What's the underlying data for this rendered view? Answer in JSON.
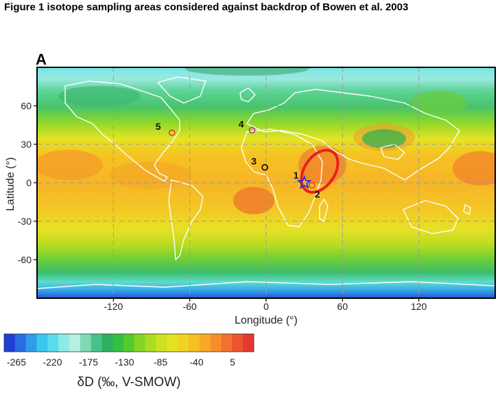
{
  "figure_title": "Figure 1 isotope sampling areas considered against backdrop of Bowen et al. 2003",
  "panel_label": "A",
  "map": {
    "x_axis": {
      "label": "Longitude (°)",
      "ticks": [
        {
          "value": -120,
          "label": "-120"
        },
        {
          "value": -60,
          "label": "-60"
        },
        {
          "value": 0,
          "label": "0"
        },
        {
          "value": 60,
          "label": "60"
        },
        {
          "value": 120,
          "label": "120"
        }
      ],
      "range": [
        -180,
        180
      ]
    },
    "y_axis": {
      "label": "Latitude (°)",
      "ticks": [
        {
          "value": 60,
          "label": "60"
        },
        {
          "value": 30,
          "label": "30"
        },
        {
          "value": 0,
          "label": "0"
        },
        {
          "value": -30,
          "label": "-30"
        },
        {
          "value": -60,
          "label": "-60"
        }
      ],
      "range": [
        -90,
        90
      ]
    },
    "grid": "dashed",
    "sample_sites": [
      {
        "id": "site-1",
        "label": "1",
        "lon": 30,
        "lat": 0,
        "marker": "star",
        "color": "#2b2bd6"
      },
      {
        "id": "site-2",
        "label": "2",
        "lon": 36,
        "lat": -2,
        "marker": "circle",
        "color": "#e33b2e"
      },
      {
        "id": "site-3",
        "label": "3",
        "lon": -1,
        "lat": 12,
        "marker": "circle",
        "color": "#000000"
      },
      {
        "id": "site-4",
        "label": "4",
        "lon": -11,
        "lat": 41,
        "marker": "circle",
        "color": "#c0309a"
      },
      {
        "id": "site-5",
        "label": "5",
        "lon": -74,
        "lat": 39,
        "marker": "circle",
        "color": "#e33b2e"
      }
    ],
    "highlight_region": {
      "center_lon": 42,
      "center_lat": 9,
      "color": "#e8211a"
    }
  },
  "colorbar": {
    "label": "δD (‰, V-SMOW)",
    "tick_labels": [
      "-265",
      "-220",
      "-175",
      "-130",
      "-85",
      "-40",
      "5"
    ],
    "colors": [
      "#1f3fd6",
      "#2a6de0",
      "#2f9de8",
      "#3dc6ee",
      "#59dcee",
      "#8eeae6",
      "#b6f0e0",
      "#7fd9b4",
      "#46c38a",
      "#2fb061",
      "#35c043",
      "#55cc2e",
      "#86d526",
      "#aadd22",
      "#cbe321",
      "#e3e324",
      "#f0d422",
      "#f4c023",
      "#f6a826",
      "#f68f2a",
      "#f2722e",
      "#ea5530",
      "#e23a2e"
    ]
  }
}
